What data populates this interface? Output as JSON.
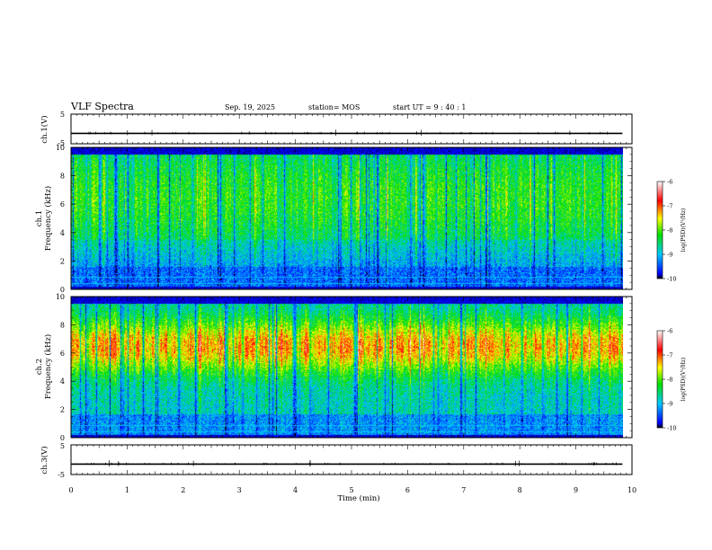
{
  "header": {
    "title": "VLF Spectra",
    "date": "Sep. 19, 2025",
    "station": "station= MOS",
    "start": "start  UT  =   9  : 40 : 1"
  },
  "chart_data": [
    {
      "type": "line",
      "id": "ch1-waveform",
      "ylabel": "ch.1(V)",
      "ylim": [
        -5,
        5
      ],
      "yticks": [
        "5",
        "-5"
      ],
      "description_level": -1.5
    },
    {
      "type": "heatmap",
      "id": "ch1-spectrogram",
      "ylabel": "ch.1\nFrequency (kHz)",
      "ylabel_lines": [
        "ch.1",
        "Frequency (kHz)"
      ],
      "ylim": [
        0,
        10
      ],
      "yticks": [
        "0",
        "2",
        "4",
        "6",
        "8",
        "10"
      ],
      "colorbar": {
        "range": [
          -10,
          -6
        ],
        "ticks": [
          "-6",
          "-7",
          "-8",
          "-9",
          "-10"
        ],
        "label": "log(PSD)(V²/Hz)"
      }
    },
    {
      "type": "heatmap",
      "id": "ch2-spectrogram",
      "ylabel": "ch.2\nFrequency (kHz)",
      "ylabel_lines": [
        "ch.2",
        "Frequency (kHz)"
      ],
      "ylim": [
        0,
        10
      ],
      "yticks": [
        "0",
        "2",
        "4",
        "6",
        "8",
        "10"
      ],
      "colorbar": {
        "range": [
          -10,
          -6
        ],
        "ticks": [
          "-6",
          "-7",
          "-8",
          "-9",
          "-10"
        ],
        "label": "log(PSD)(V²/Hz)"
      }
    },
    {
      "type": "line",
      "id": "ch3-waveform",
      "ylabel": "ch.3(V)",
      "ylim": [
        -5,
        5
      ],
      "yticks": [
        "5",
        "-5"
      ],
      "description_level": -1.5
    }
  ],
  "xaxis": {
    "label": "Time  (min)",
    "range": [
      0,
      10
    ],
    "ticks": [
      "0",
      "1",
      "2",
      "3",
      "4",
      "5",
      "6",
      "7",
      "8",
      "9",
      "10"
    ],
    "data_end": 9.83
  },
  "colors": {
    "background": "#ffffff",
    "axis": "#000000",
    "colormap": [
      "#000000",
      "#0000ff",
      "#00c8ff",
      "#00e000",
      "#ffff00",
      "#ff0000",
      "#ffffff"
    ]
  }
}
